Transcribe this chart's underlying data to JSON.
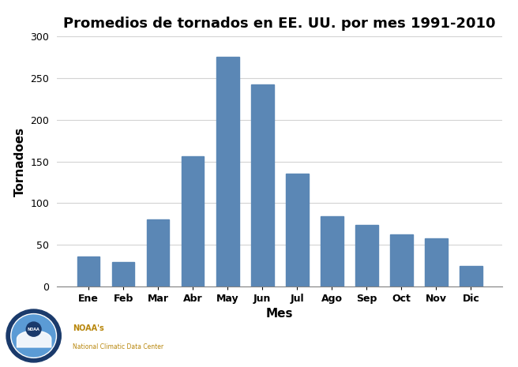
{
  "months": [
    "Ene",
    "Feb",
    "Mar",
    "Abr",
    "May",
    "Jun",
    "Jul",
    "Ago",
    "Sep",
    "Oct",
    "Nov",
    "Dic"
  ],
  "values": [
    36,
    29,
    80,
    156,
    276,
    243,
    135,
    84,
    74,
    62,
    58,
    24
  ],
  "bar_color": "#5b87b5",
  "title": "Promedios de tornados en EE. UU. por mes 1991-2010",
  "xlabel": "Mes",
  "ylabel": "Tornadoes",
  "ylim": [
    0,
    300
  ],
  "yticks": [
    0,
    50,
    100,
    150,
    200,
    250,
    300
  ],
  "title_fontsize": 13,
  "axis_label_fontsize": 11,
  "tick_fontsize": 9,
  "background_color": "#ffffff",
  "noaa_text1": "NOAA's",
  "noaa_text2": "National Climatic Data Center"
}
